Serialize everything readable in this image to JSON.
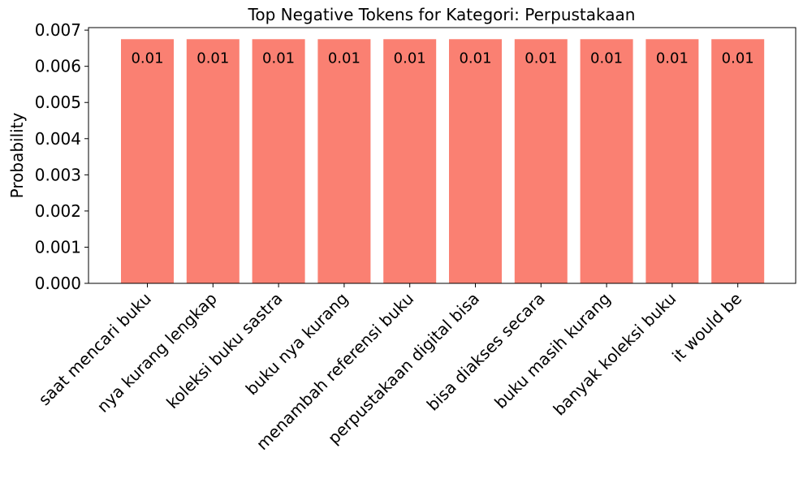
{
  "chart_data": {
    "type": "bar",
    "title": "Top Negative Tokens for Kategori: Perpustakaan",
    "xlabel": "",
    "ylabel": "Probability",
    "categories": [
      "saat mencari buku",
      "nya kurang lengkap",
      "koleksi buku sastra",
      "buku nya kurang",
      "menambah referensi buku",
      "perpustakaan digital bisa",
      "bisa diakses secara",
      "buku masih kurang",
      "banyak koleksi buku",
      "it would be"
    ],
    "values": [
      0.00675,
      0.00675,
      0.00675,
      0.00675,
      0.00675,
      0.00675,
      0.00675,
      0.00675,
      0.00675,
      0.00675
    ],
    "data_labels": [
      "0.01",
      "0.01",
      "0.01",
      "0.01",
      "0.01",
      "0.01",
      "0.01",
      "0.01",
      "0.01",
      "0.01"
    ],
    "ylim": [
      0,
      0.00707
    ],
    "yticks": [
      "0.000",
      "0.001",
      "0.002",
      "0.003",
      "0.004",
      "0.005",
      "0.006",
      "0.007"
    ],
    "bar_color": "#fa8072",
    "grid": false,
    "legend": "none"
  }
}
